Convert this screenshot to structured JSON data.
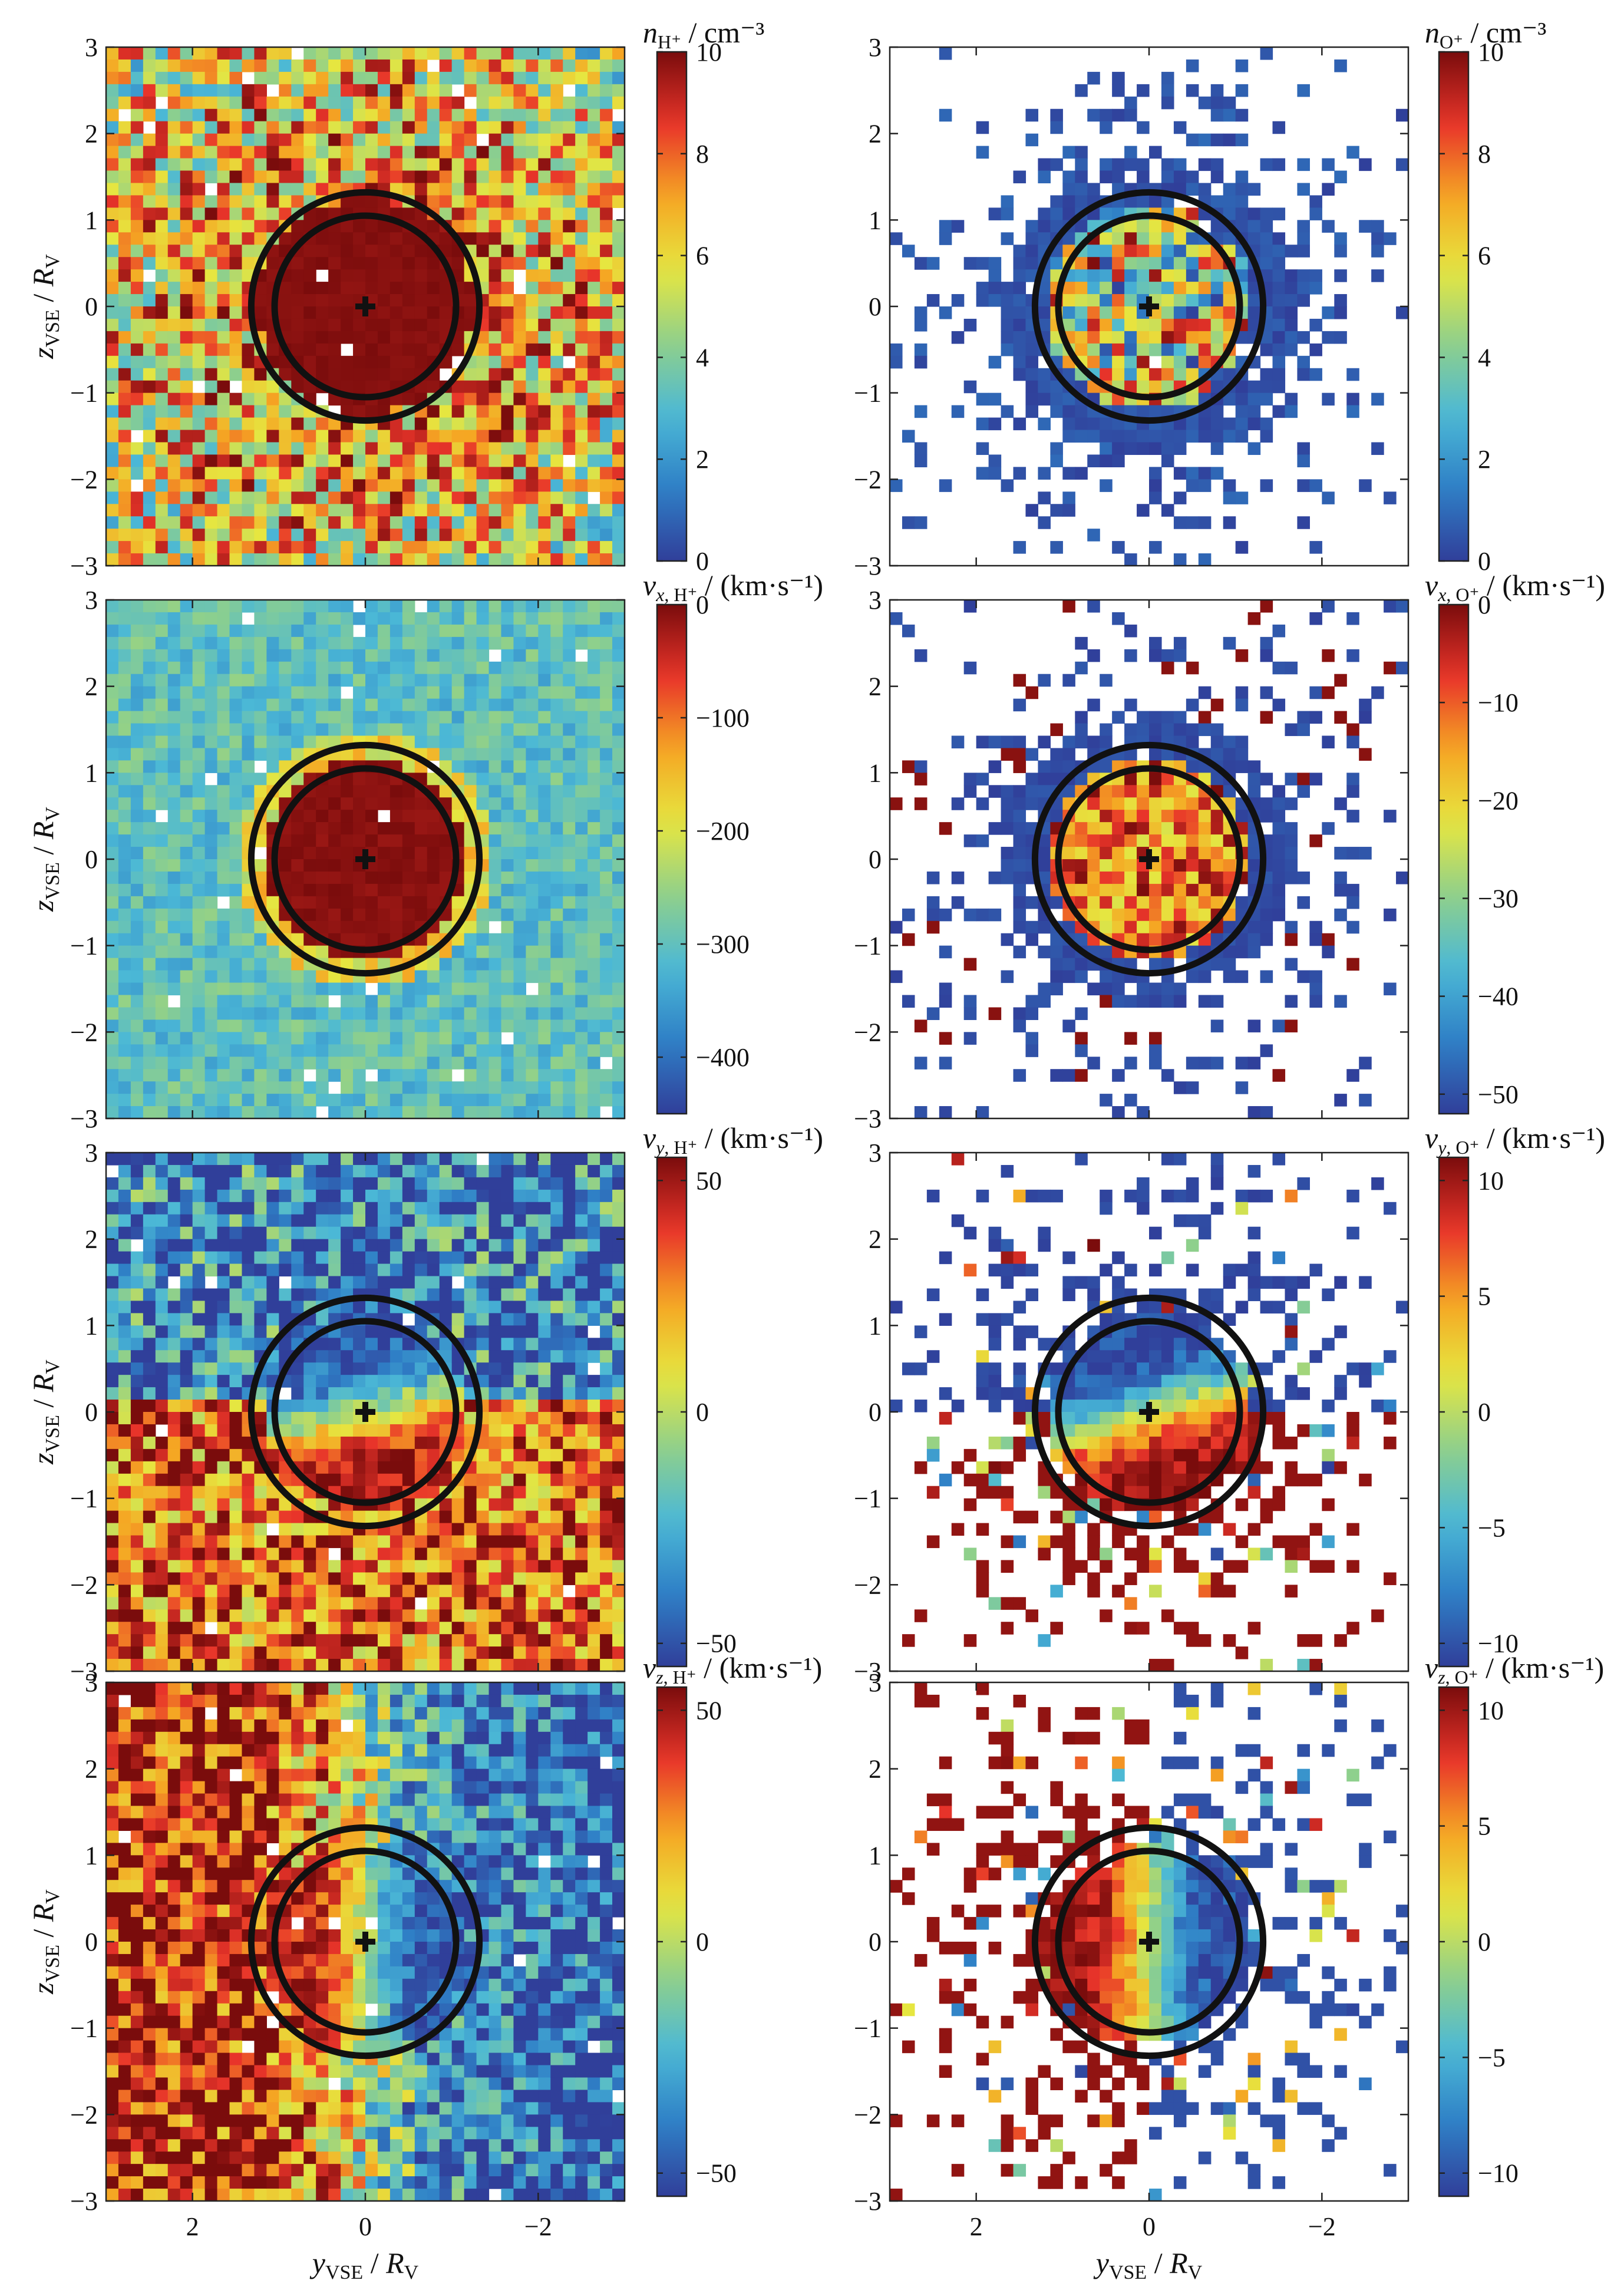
{
  "figure": {
    "xlabel_var": "y",
    "xlabel_sub": "VSE",
    "xlabel_unit": "R",
    "xlabel_unit_sub": "V",
    "ylabel_var": "z",
    "ylabel_sub": "VSE",
    "ylabel_unit": "R",
    "ylabel_unit_sub": "V",
    "colors": {
      "empty_bin": "#ffffff",
      "circle": "#111111",
      "colormap": [
        "#303f9a",
        "#2f7fc6",
        "#4bb8d6",
        "#8fd08b",
        "#e6e640",
        "#f5a623",
        "#e8342a",
        "#7a0c0c"
      ]
    }
  },
  "chart_data": [
    {
      "type": "heatmap",
      "quantity": "n",
      "species": "H⁺",
      "unit": "cm⁻³",
      "xlim": [
        3,
        -3
      ],
      "ylim": [
        -3,
        3
      ],
      "xticks": [
        "2",
        "0",
        "−2"
      ],
      "yticks": [
        "3",
        "2",
        "1",
        "0",
        "−1",
        "−2",
        "−3"
      ],
      "clim": [
        0,
        10
      ],
      "cticks": [
        "10",
        "8",
        "6",
        "4",
        "2",
        "0"
      ],
      "circles_radius": [
        1.05,
        1.32
      ],
      "center_marker": "+"
    },
    {
      "type": "heatmap",
      "quantity": "n",
      "species": "O⁺",
      "unit": "cm⁻³",
      "xlim": [
        3,
        -3
      ],
      "ylim": [
        -3,
        3
      ],
      "xticks": [
        "2",
        "0",
        "−2"
      ],
      "yticks": [
        "3",
        "2",
        "1",
        "0",
        "−1",
        "−2",
        "−3"
      ],
      "clim": [
        0,
        10
      ],
      "cticks": [
        "10",
        "8",
        "6",
        "4",
        "2",
        "0"
      ],
      "circles_radius": [
        1.05,
        1.32
      ],
      "center_marker": "+"
    },
    {
      "type": "heatmap",
      "quantity": "v",
      "component": "x",
      "species": "H⁺",
      "unit": "km·s⁻¹",
      "xlim": [
        3,
        -3
      ],
      "ylim": [
        -3,
        3
      ],
      "xticks": [
        "2",
        "0",
        "−2"
      ],
      "yticks": [
        "3",
        "2",
        "1",
        "0",
        "−1",
        "−2",
        "−3"
      ],
      "clim": [
        -450,
        0
      ],
      "cticks": [
        "0",
        "−100",
        "−200",
        "−300",
        "−400"
      ],
      "circles_radius": [
        1.05,
        1.32
      ],
      "center_marker": "+"
    },
    {
      "type": "heatmap",
      "quantity": "v",
      "component": "x",
      "species": "O⁺",
      "unit": "km·s⁻¹",
      "xlim": [
        3,
        -3
      ],
      "ylim": [
        -3,
        3
      ],
      "xticks": [
        "2",
        "0",
        "−2"
      ],
      "yticks": [
        "3",
        "2",
        "1",
        "0",
        "−1",
        "−2",
        "−3"
      ],
      "clim": [
        -52,
        0
      ],
      "cticks": [
        "0",
        "−10",
        "−20",
        "−30",
        "−40",
        "−50"
      ],
      "circles_radius": [
        1.05,
        1.32
      ],
      "center_marker": "+"
    },
    {
      "type": "heatmap",
      "quantity": "v",
      "component": "y",
      "species": "H⁺",
      "unit": "km·s⁻¹",
      "xlim": [
        3,
        -3
      ],
      "ylim": [
        -3,
        3
      ],
      "xticks": [
        "2",
        "0",
        "−2"
      ],
      "yticks": [
        "3",
        "2",
        "1",
        "0",
        "−1",
        "−2",
        "−3"
      ],
      "clim": [
        -55,
        55
      ],
      "cticks": [
        "50",
        "0",
        "−50"
      ],
      "circles_radius": [
        1.05,
        1.32
      ],
      "center_marker": "+"
    },
    {
      "type": "heatmap",
      "quantity": "v",
      "component": "y",
      "species": "O⁺",
      "unit": "km·s⁻¹",
      "xlim": [
        3,
        -3
      ],
      "ylim": [
        -3,
        3
      ],
      "xticks": [
        "2",
        "0",
        "−2"
      ],
      "yticks": [
        "3",
        "2",
        "1",
        "0",
        "−1",
        "−2",
        "−3"
      ],
      "clim": [
        -11,
        11
      ],
      "cticks": [
        "10",
        "5",
        "0",
        "−5",
        "−10"
      ],
      "circles_radius": [
        1.05,
        1.32
      ],
      "center_marker": "+"
    },
    {
      "type": "heatmap",
      "quantity": "v",
      "component": "z",
      "species": "H⁺",
      "unit": "km·s⁻¹",
      "xlim": [
        3,
        -3
      ],
      "ylim": [
        -3,
        3
      ],
      "xticks": [
        "2",
        "0",
        "−2"
      ],
      "yticks": [
        "3",
        "2",
        "1",
        "0",
        "−1",
        "−2",
        "−3"
      ],
      "clim": [
        -55,
        55
      ],
      "cticks": [
        "50",
        "0",
        "−50"
      ],
      "circles_radius": [
        1.05,
        1.32
      ],
      "center_marker": "+"
    },
    {
      "type": "heatmap",
      "quantity": "v",
      "component": "z",
      "species": "O⁺",
      "unit": "km·s⁻¹",
      "xlim": [
        3,
        -3
      ],
      "ylim": [
        -3,
        3
      ],
      "xticks": [
        "2",
        "0",
        "−2"
      ],
      "yticks": [
        "3",
        "2",
        "1",
        "0",
        "−1",
        "−2",
        "−3"
      ],
      "clim": [
        -11,
        11
      ],
      "cticks": [
        "10",
        "5",
        "0",
        "−5",
        "−10"
      ],
      "circles_radius": [
        1.05,
        1.32
      ],
      "center_marker": "+"
    }
  ]
}
